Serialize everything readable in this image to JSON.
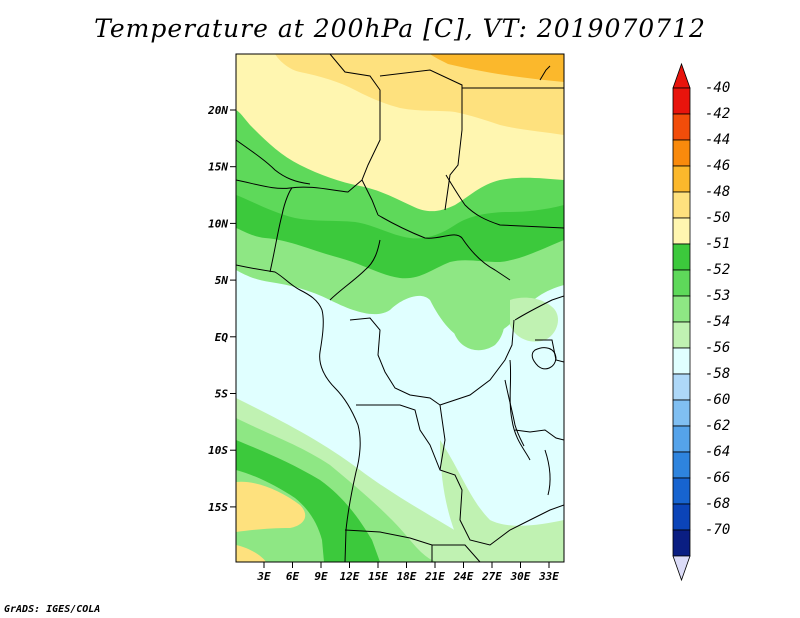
{
  "title": "Temperature at 200hPa [C], VT: 2019070712",
  "credit": "GrADS: IGES/COLA",
  "lat_ticks": [
    "20N",
    "15N",
    "10N",
    "5N",
    "EQ",
    "5S",
    "10S",
    "15S"
  ],
  "lon_ticks": [
    "3E",
    "6E",
    "9E",
    "12E",
    "15E",
    "18E",
    "21E",
    "24E",
    "27E",
    "30E",
    "33E"
  ],
  "colorbar": {
    "labels": [
      "-40",
      "-42",
      "-44",
      "-46",
      "-48",
      "-50",
      "-51",
      "-52",
      "-53",
      "-54",
      "-56",
      "-58",
      "-60",
      "-62",
      "-64",
      "-66",
      "-68",
      "-70"
    ],
    "colors": [
      "#e8140c",
      "#f24d0a",
      "#f98a0c",
      "#fbb82c",
      "#fee17e",
      "#fff6b0",
      "#3cc93c",
      "#5ed95a",
      "#8ee784",
      "#c0f2b2",
      "#e0ffff",
      "#aed8f8",
      "#80bff2",
      "#55a3ea",
      "#2e84de",
      "#1764d0",
      "#0b44b8",
      "#0a1e82"
    ],
    "top_arrow_color": "#e8140c",
    "bottom_arrow_color": "#dcdcf8"
  }
}
